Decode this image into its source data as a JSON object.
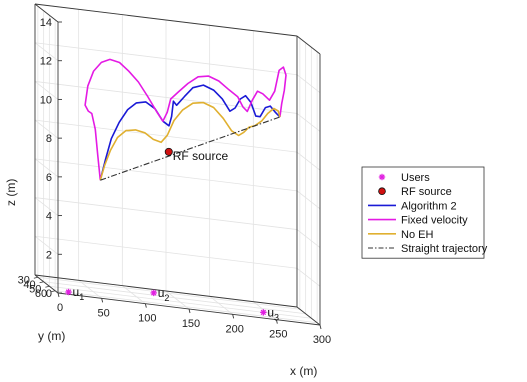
{
  "chart_data": {
    "type": "line",
    "projection": "3d",
    "xlabel": "x (m)",
    "ylabel": "y (m)",
    "zlabel": "z (m)",
    "xlim": [
      0,
      300
    ],
    "ylim": [
      25,
      65
    ],
    "zlim": [
      0,
      14
    ],
    "x_ticks": [
      "0",
      "50",
      "100",
      "150",
      "200",
      "250",
      "300"
    ],
    "y_ticks": [
      "30",
      "40",
      "50",
      "60"
    ],
    "z_ticks": [
      "0",
      "2",
      "4",
      "6",
      "8",
      "10",
      "12",
      "14"
    ],
    "grid": true,
    "legend_position": "center-right",
    "legend": [
      {
        "label": "Users",
        "kind": "marker-star",
        "color": "#e020e0"
      },
      {
        "label": "RF source",
        "kind": "marker-circle",
        "color": "#d01010"
      },
      {
        "label": "Algorithm 2",
        "kind": "line",
        "color": "#1a1ad6"
      },
      {
        "label": "Fixed velocity",
        "kind": "line",
        "color": "#e41ae4"
      },
      {
        "label": "No EH",
        "kind": "line",
        "color": "#e0b030"
      },
      {
        "label": "Straight trajectory",
        "kind": "dashdot",
        "color": "#333333"
      }
    ],
    "users": [
      {
        "label": "u",
        "sub": "1",
        "x": 16,
        "y": 59,
        "z": 0
      },
      {
        "label": "u",
        "sub": "2",
        "x": 130,
        "y": 34,
        "z": 0
      },
      {
        "label": "u",
        "sub": "3",
        "x": 245,
        "y": 50,
        "z": 0
      }
    ],
    "rf_source": {
      "label": "RF source",
      "x": 140,
      "y": 45,
      "z": 7.6
    },
    "series": [
      {
        "name": "Algorithm 2",
        "color": "#1a1ad6",
        "points": [
          [
            55,
            55,
            5.9
          ],
          [
            61,
            55,
            7.0
          ],
          [
            68,
            54.5,
            8.1
          ],
          [
            77,
            54.5,
            9.0
          ],
          [
            87,
            54,
            9.7
          ],
          [
            97,
            54,
            10.1
          ],
          [
            108,
            53.5,
            10.2
          ],
          [
            119,
            53,
            9.9
          ],
          [
            128,
            53,
            9.3
          ],
          [
            135,
            53,
            9.1
          ],
          [
            138,
            53,
            9.6
          ],
          [
            140,
            53,
            10.4
          ],
          [
            144,
            52.5,
            10.2
          ],
          [
            153,
            52.5,
            10.7
          ],
          [
            163,
            52,
            11.2
          ],
          [
            175,
            52,
            11.4
          ],
          [
            187,
            51.5,
            11.2
          ],
          [
            197,
            51.5,
            10.8
          ],
          [
            206,
            51,
            10.2
          ],
          [
            212,
            51,
            10.4
          ],
          [
            218,
            51,
            10.9
          ],
          [
            224,
            51,
            11.1
          ],
          [
            230,
            51,
            10.8
          ],
          [
            236,
            50.5,
            10.1
          ],
          [
            241,
            50.5,
            10.1
          ],
          [
            247,
            50.5,
            10.6
          ],
          [
            253,
            50,
            10.7
          ],
          [
            259,
            50,
            10.4
          ],
          [
            264,
            50,
            10.2
          ]
        ]
      },
      {
        "name": "Fixed velocity",
        "color": "#e41ae4",
        "points": [
          [
            55,
            55,
            5.9
          ],
          [
            52,
            55,
            7.2
          ],
          [
            49,
            55.5,
            8.5
          ],
          [
            45,
            55.5,
            9.3
          ],
          [
            41,
            55.5,
            9.4
          ],
          [
            37,
            56,
            9.7
          ],
          [
            40,
            56,
            10.7
          ],
          [
            47,
            55.5,
            11.5
          ],
          [
            56,
            55.5,
            12.0
          ],
          [
            66,
            55,
            12.2
          ],
          [
            77,
            55,
            12.1
          ],
          [
            88,
            54.5,
            11.7
          ],
          [
            99,
            54.5,
            11.2
          ],
          [
            110,
            54,
            10.5
          ],
          [
            120,
            53.5,
            9.8
          ],
          [
            128,
            53,
            9.3
          ],
          [
            133,
            53,
            9.8
          ],
          [
            137,
            53,
            10.5
          ],
          [
            146,
            52.5,
            10.9
          ],
          [
            157,
            52.5,
            11.4
          ],
          [
            169,
            52,
            11.8
          ],
          [
            181,
            52,
            11.9
          ],
          [
            193,
            51.5,
            11.7
          ],
          [
            205,
            51,
            11.3
          ],
          [
            215,
            51,
            11.0
          ],
          [
            221,
            51,
            10.5
          ],
          [
            226,
            51,
            10.3
          ],
          [
            232,
            50.5,
            10.9
          ],
          [
            238,
            50.5,
            11.4
          ],
          [
            244,
            50.5,
            11.3
          ],
          [
            252,
            50,
            11.0
          ],
          [
            258,
            50,
            11.5
          ],
          [
            263,
            50,
            12.6
          ],
          [
            268,
            50,
            12.8
          ],
          [
            271,
            50,
            12.4
          ],
          [
            269,
            50,
            11.6
          ],
          [
            266,
            50,
            10.9
          ],
          [
            264,
            50,
            10.2
          ]
        ]
      },
      {
        "name": "No EH",
        "color": "#e0b030",
        "points": [
          [
            55,
            55,
            5.9
          ],
          [
            60,
            55,
            6.7
          ],
          [
            67,
            54.5,
            7.5
          ],
          [
            75,
            54.5,
            8.2
          ],
          [
            85,
            54,
            8.6
          ],
          [
            96,
            54,
            8.7
          ],
          [
            107,
            53.5,
            8.6
          ],
          [
            117,
            53,
            8.3
          ],
          [
            126,
            53,
            8.2
          ],
          [
            133,
            53,
            8.6
          ],
          [
            141,
            52.5,
            9.4
          ],
          [
            151,
            52.5,
            10.0
          ],
          [
            163,
            52,
            10.4
          ],
          [
            175,
            52,
            10.5
          ],
          [
            187,
            51.5,
            10.3
          ],
          [
            198,
            51.5,
            9.8
          ],
          [
            208,
            51,
            9.2
          ],
          [
            216,
            51,
            9.0
          ],
          [
            222,
            51,
            9.2
          ],
          [
            228,
            51,
            9.5
          ],
          [
            235,
            50.5,
            9.6
          ],
          [
            243,
            50.5,
            9.9
          ],
          [
            250,
            50,
            10.3
          ],
          [
            257,
            50,
            10.6
          ],
          [
            262,
            50,
            10.5
          ],
          [
            264,
            50,
            10.2
          ]
        ]
      },
      {
        "name": "Straight trajectory",
        "color": "#333333",
        "dash": "6,2,1.5,2",
        "points": [
          [
            55,
            55,
            5.9
          ],
          [
            264,
            50,
            10.2
          ]
        ]
      }
    ]
  }
}
